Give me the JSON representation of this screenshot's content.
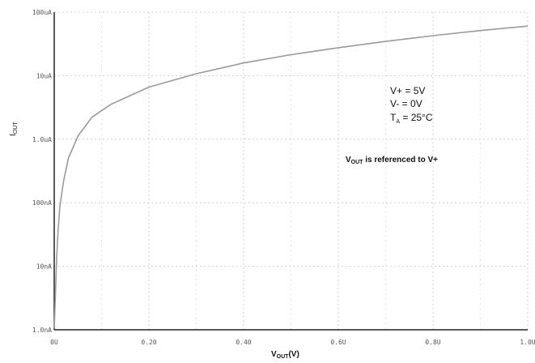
{
  "chart_data": {
    "type": "line",
    "x_ticks": [
      "0U",
      "0.20",
      "0.40",
      "0.6U",
      "0.8U",
      "1.0U"
    ],
    "x_tick_values": [
      0,
      0.2,
      0.4,
      0.6,
      0.8,
      1.0
    ],
    "y_ticks": [
      "1.0nA",
      "10nA",
      "100nA",
      "1.0uA",
      "10uA",
      "100uA"
    ],
    "y_scale": "log",
    "xlim": [
      0,
      1.0
    ],
    "ylim_tick_index": [
      0,
      5
    ],
    "grid": true,
    "series": [
      {
        "color": "#9a9a9a",
        "x": [
          0,
          0.002,
          0.005,
          0.008,
          0.012,
          0.02,
          0.03,
          0.05,
          0.08,
          0.12,
          0.2,
          0.3,
          0.4,
          0.5,
          0.6,
          0.7,
          0.8,
          0.9,
          1.0
        ],
        "y_tick_index": [
          0.02,
          0.45,
          1.1,
          1.55,
          1.95,
          2.35,
          2.7,
          3.05,
          3.35,
          3.55,
          3.82,
          4.03,
          4.2,
          4.33,
          4.44,
          4.54,
          4.63,
          4.71,
          4.78
        ]
      }
    ],
    "xlabel": {
      "main": "V",
      "sub": "OUT",
      "suffix": "(V)"
    },
    "ylabel": {
      "main": "I",
      "sub": "OUT"
    },
    "annotations": {
      "conditions": [
        "V+ = 5V",
        "V- = 0V"
      ],
      "ta": {
        "main": "T",
        "sub": "A",
        "suffix": " = 25°C"
      },
      "reference": {
        "main": "V",
        "sub": "OUT",
        "suffix": " is referenced to V+"
      }
    },
    "colors": {
      "grid": "#cfcfcf",
      "axis": "#222222",
      "curve": "#9a9a9a"
    }
  }
}
